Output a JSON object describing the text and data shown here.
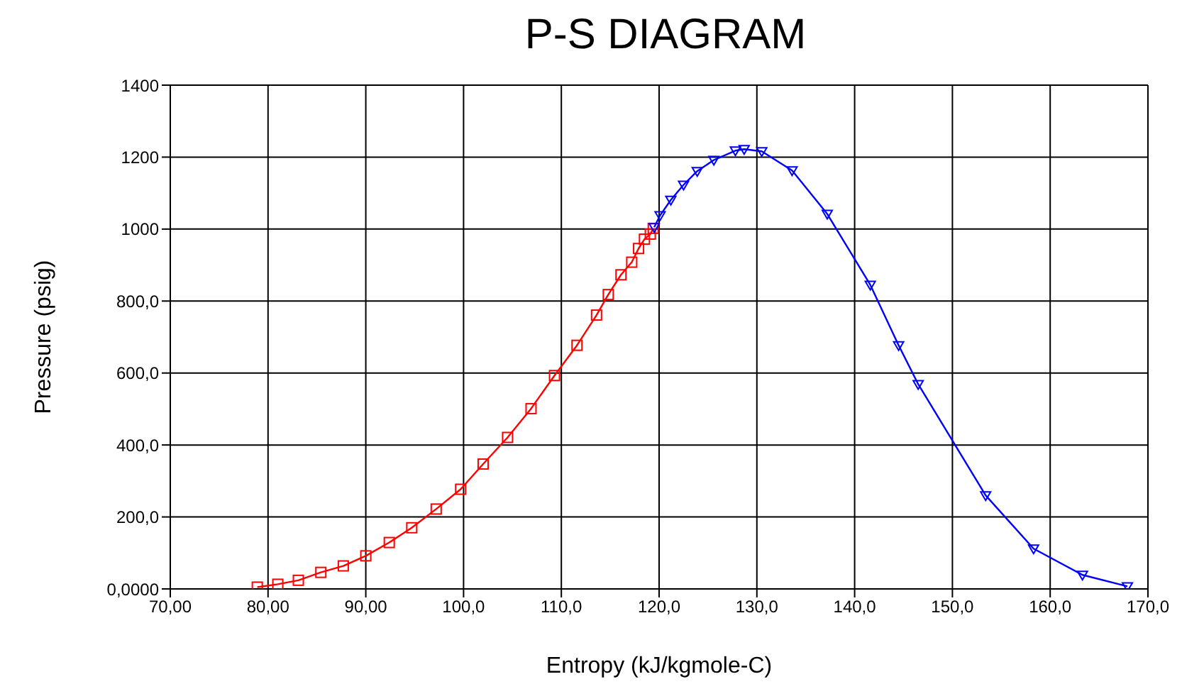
{
  "chart_data": {
    "type": "line",
    "title": "P-S DIAGRAM",
    "xlabel": "Entropy (kJ/kgmole-C)",
    "ylabel": "Pressure (psig)",
    "xlim": [
      70,
      170
    ],
    "xticks": [
      {
        "value": 70,
        "label": "70,00"
      },
      {
        "value": 80,
        "label": "80,00"
      },
      {
        "value": 90,
        "label": "90,00"
      },
      {
        "value": 100,
        "label": "100,0"
      },
      {
        "value": 110,
        "label": "110,0"
      },
      {
        "value": 120,
        "label": "120,0"
      },
      {
        "value": 130,
        "label": "130,0"
      },
      {
        "value": 140,
        "label": "140,0"
      },
      {
        "value": 150,
        "label": "150,0"
      },
      {
        "value": 160,
        "label": "160,0"
      },
      {
        "value": 170,
        "label": "170,0"
      }
    ],
    "ylim": [
      0,
      1400
    ],
    "yticks": [
      {
        "value": 0,
        "label": "0,0000"
      },
      {
        "value": 200,
        "label": "200,0"
      },
      {
        "value": 400,
        "label": "400,0"
      },
      {
        "value": 600,
        "label": "600,0"
      },
      {
        "value": 800,
        "label": "800,0"
      },
      1000,
      1200,
      1400
    ],
    "grid": true,
    "line_style": "solid",
    "series": [
      {
        "color": "#ff0000",
        "marker": "square",
        "x": [
          78.9,
          81.0,
          83.1,
          85.4,
          87.7,
          90.0,
          92.4,
          94.7,
          97.2,
          99.7,
          102.0,
          104.5,
          106.9,
          109.3,
          111.6,
          113.6,
          114.8,
          116.1,
          117.2,
          117.9,
          118.5,
          119.1,
          119.4
        ],
        "values": [
          5,
          13,
          24,
          46,
          64,
          92,
          129,
          170,
          222,
          277,
          347,
          421,
          501,
          593,
          677,
          761,
          818,
          873,
          908,
          946,
          972,
          986,
          1002
        ]
      },
      {
        "color": "#0000ff",
        "marker": "triangle",
        "x": [
          119.5,
          120.1,
          121.2,
          122.5,
          123.9,
          125.6,
          127.8,
          128.7,
          130.5,
          133.6,
          137.2,
          141.6,
          144.5,
          146.5,
          153.4,
          158.3,
          163.3,
          167.9
        ],
        "values": [
          1005,
          1038,
          1081,
          1123,
          1161,
          1192,
          1218,
          1222,
          1216,
          1163,
          1042,
          845,
          677,
          569,
          260,
          112,
          39,
          7
        ]
      }
    ]
  }
}
